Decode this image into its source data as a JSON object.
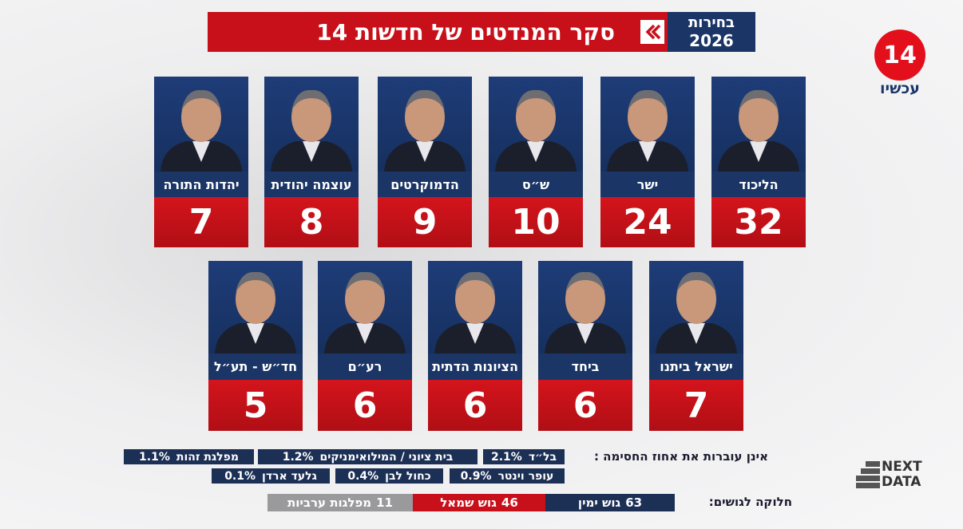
{
  "header": {
    "tag_line1": "בחירות",
    "tag_line2": "2026",
    "title": "סקר המנדטים של חדשות 14"
  },
  "logo": {
    "number": "14",
    "text": "עכשיו"
  },
  "parties": [
    {
      "name": "הליכוד",
      "seats": 32
    },
    {
      "name": "ישר",
      "seats": 24
    },
    {
      "name": "ש״ס",
      "seats": 10
    },
    {
      "name": "הדמוקרטים",
      "seats": 9
    },
    {
      "name": "עוצמה יהודית",
      "seats": 8
    },
    {
      "name": "יהדות התורה",
      "seats": 7
    },
    {
      "name": "ישראל ביתנו",
      "seats": 7
    },
    {
      "name": "ביחד",
      "seats": 6
    },
    {
      "name": "הציונות הדתית",
      "seats": 6
    },
    {
      "name": "רע״ם",
      "seats": 6
    },
    {
      "name": "חד״ש - תע״ל",
      "seats": 5
    }
  ],
  "threshold": {
    "label": "אינן עוברות את אחוז החסימה :",
    "items": [
      {
        "name": "בל״ד",
        "percent": "2.1%"
      },
      {
        "name": "בית ציוני / המילואימניקים",
        "percent": "1.2%"
      },
      {
        "name": "מפלגת זהות",
        "percent": "1.1%"
      },
      {
        "name": "עופר וינטר",
        "percent": "0.9%"
      },
      {
        "name": "כחול לבן",
        "percent": "0.4%"
      },
      {
        "name": "גלעד ארדן",
        "percent": "0.1%"
      }
    ]
  },
  "blocs": {
    "label": "חלוקה לגושים:",
    "items": [
      {
        "seats": 63,
        "name": "גוש ימין"
      },
      {
        "seats": 46,
        "name": "גוש שמאל"
      },
      {
        "seats": 11,
        "name": "מפלגות ערביות"
      }
    ]
  },
  "brand": {
    "line1": "NEXT",
    "line2": "DATA"
  }
}
